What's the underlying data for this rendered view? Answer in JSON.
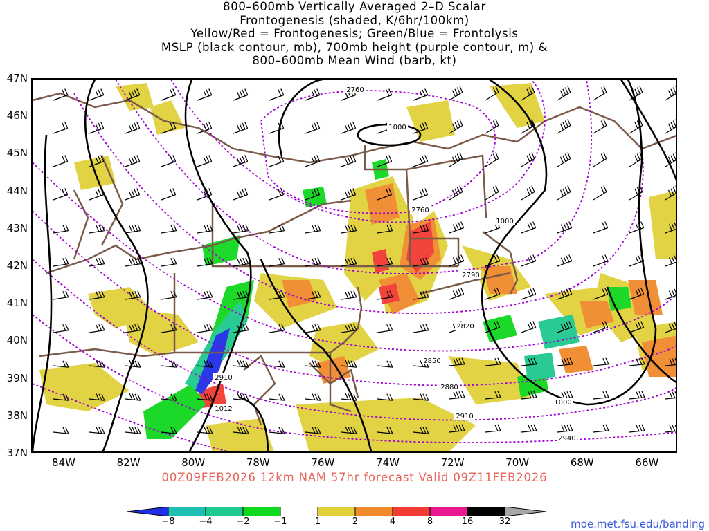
{
  "title": {
    "line1": "800–600mb Vertically Averaged 2–D Scalar",
    "line2": "Frontogenesis (shaded, K/6hr/100km)",
    "line3": "Yellow/Red = Frontogenesis;  Green/Blue = Frontolysis",
    "line4": "MSLP (black contour, mb), 700mb height (purple contour, m) &",
    "line5": "800–600mb Mean Wind (barb, kt)"
  },
  "lat_labels": [
    "47N",
    "46N",
    "45N",
    "44N",
    "43N",
    "42N",
    "41N",
    "40N",
    "39N",
    "38N",
    "37N"
  ],
  "lon_labels": [
    "84W",
    "82W",
    "80W",
    "78W",
    "76W",
    "74W",
    "72W",
    "70W",
    "68W",
    "66W"
  ],
  "valid_text": "00Z09FEB2026 12km NAM 57hr forecast Valid 09Z11FEB2026",
  "contour_labels": {
    "height": [
      "2760",
      "2760",
      "2790",
      "2820",
      "2850",
      "2880",
      "2910",
      "2910",
      "2940"
    ],
    "mslp": [
      "1000",
      "1000",
      "1000",
      "1012"
    ]
  },
  "colorbar": {
    "ticks": [
      "−8",
      "−4",
      "−2",
      "−1",
      "1",
      "2",
      "4",
      "8",
      "16",
      "32"
    ],
    "colors": [
      "#1f2ee6",
      "#1fbfb3",
      "#1ec98e",
      "#10d81e",
      "#ffffff",
      "#e0d13a",
      "#f08a2c",
      "#f23b32",
      "#e8168f",
      "#000000",
      "#a7a7a7"
    ]
  },
  "colors": {
    "mslp": "#000000",
    "height": "#a000d0",
    "borders": "#7a5a48",
    "valid_text": "#e8645a",
    "url": "#3b5bd6"
  },
  "url": "moe.met.fsu.edu/banding"
}
